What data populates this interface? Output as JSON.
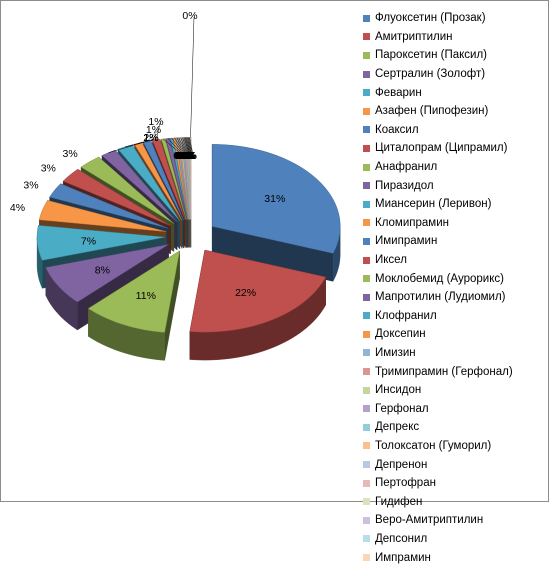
{
  "chart_data": {
    "type": "pie",
    "title": "",
    "style": "3d-exploded",
    "legend_position": "right",
    "categories": [
      "Флуоксетин (Прозак)",
      "Амитриптилин",
      "Пароксетин (Паксил)",
      "Сертралин (Золофт)",
      "Феварин",
      "Азафен (Пипофезин)",
      "Коаксил",
      "Циталопрам (Ципрамил)",
      "Анафранил",
      "Пиразидол",
      "Миансерин (Леривон)",
      "Кломипрамин",
      "Имипрамин",
      "Иксел",
      "Моклобемид  (Аурорикс)",
      "Мапротилин (Лудиомил)",
      "Клофранил",
      "Доксепин",
      "Имизин",
      "Тримипрамин (Герфонал)",
      "Инсидон",
      "Герфонал",
      "Депрекс",
      "Толоксатон (Гуморил)",
      "Депренон",
      "Пертофран",
      "Гидифен",
      "Веро-Амитриптилин",
      "Депсонил",
      "Импрамин"
    ],
    "values": [
      31,
      22,
      11,
      8,
      7,
      4,
      3,
      3,
      3,
      2,
      2,
      1,
      1,
      1,
      0.5,
      0.5,
      0.3,
      0.3,
      0.2,
      0.2,
      0.2,
      0.2,
      0.1,
      0.1,
      0.1,
      0.1,
      0.1,
      0.1,
      0.1,
      0.1
    ],
    "data_labels": [
      "31%",
      "22%",
      "11%",
      "8%",
      "7%",
      "4%",
      "3%",
      "3%",
      "3%",
      "2%",
      "2%",
      "1%",
      "1%",
      "1%",
      "0%",
      "0%",
      "0%",
      "0%",
      "0%",
      "0%",
      "0%",
      "0%",
      "0%",
      "0%",
      "0%",
      "0%",
      "0%",
      "0%",
      "0%",
      "0%"
    ],
    "colors": [
      "#4f81bd",
      "#c0504d",
      "#9bbb59",
      "#8064a2",
      "#4bacc6",
      "#f79646",
      "#4f81bd",
      "#c0504d",
      "#9bbb59",
      "#8064a2",
      "#4bacc6",
      "#f79646",
      "#4f81bd",
      "#c0504d",
      "#9bbb59",
      "#8064a2",
      "#4bacc6",
      "#f79646",
      "#95b3d7",
      "#d99694",
      "#c3d69b",
      "#b3a2c7",
      "#93cddd",
      "#fac090",
      "#b9c8e2",
      "#e6b9b8",
      "#d7e4bd",
      "#ccc1da",
      "#b7dee8",
      "#fcd5b5"
    ]
  }
}
